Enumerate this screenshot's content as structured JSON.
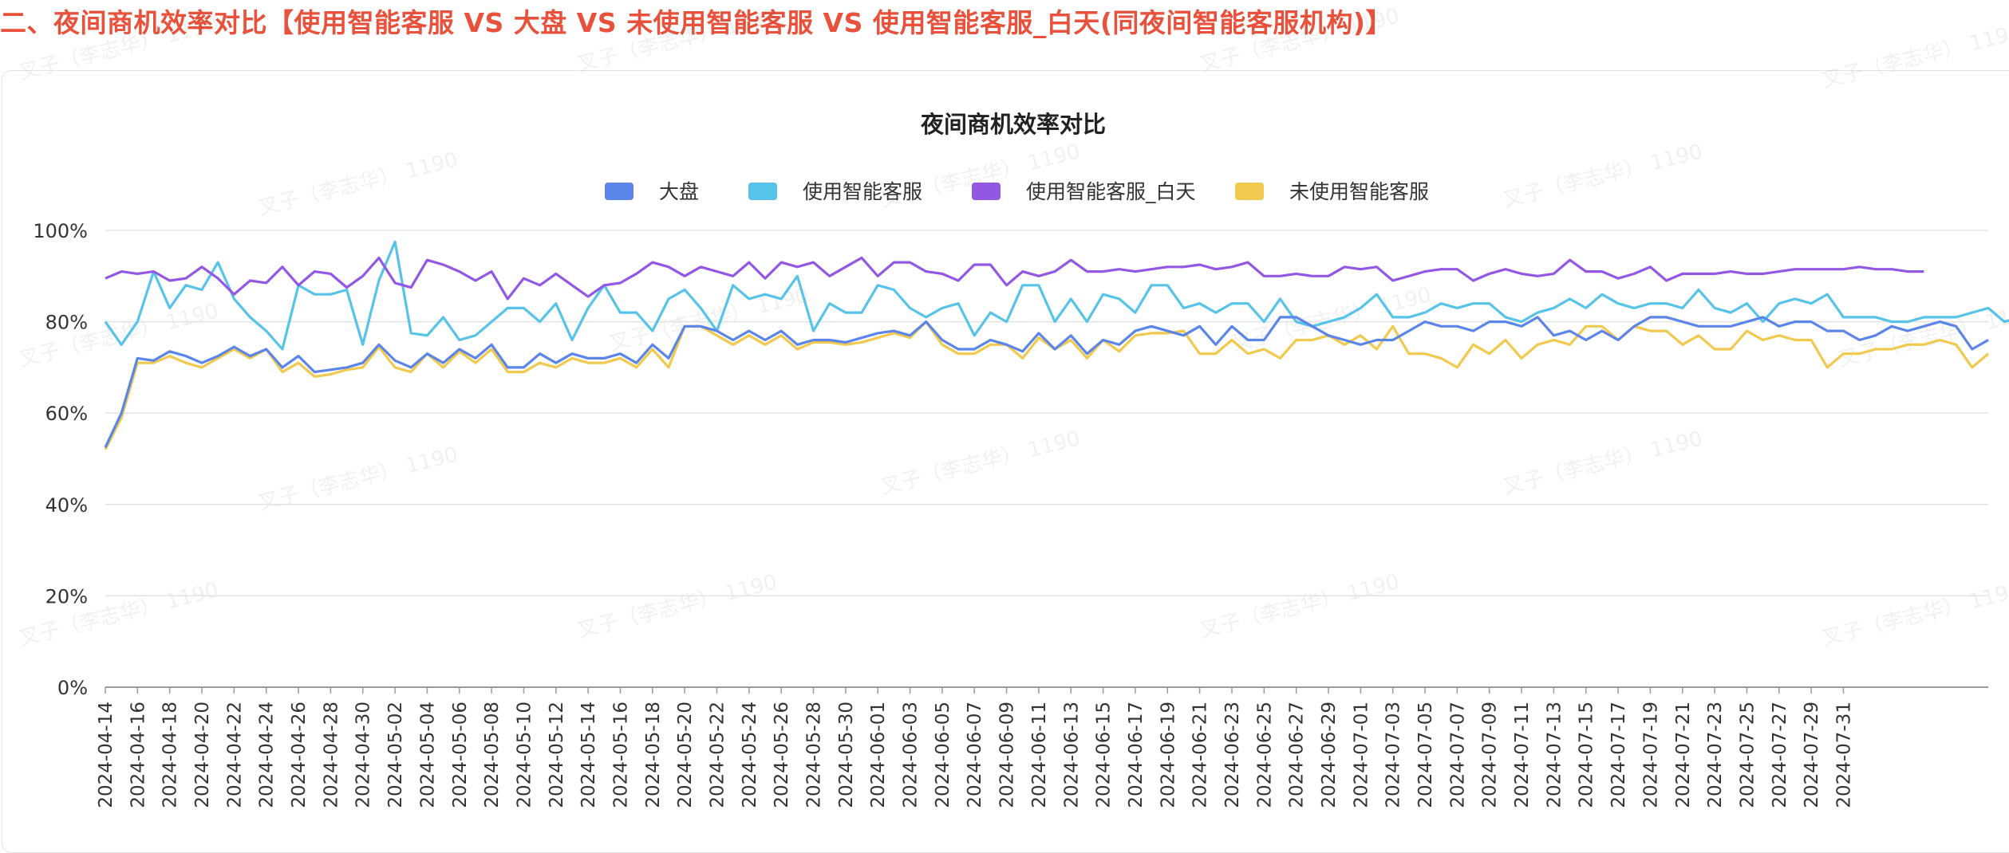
{
  "heading": "二、夜间商机效率对比【使用智能客服 VS 大盘 VS 未使用智能客服 VS 使用智能客服_白天(同夜间智能客服机构)】",
  "watermark": "叉子（李志华） 1190",
  "chart_data": {
    "type": "line",
    "title": "夜间商机效率对比",
    "start_date": "2024-04-14",
    "x_tick_labels": [
      "2024-04-14",
      "2024-04-16",
      "2024-04-18",
      "2024-04-20",
      "2024-04-22",
      "2024-04-24",
      "2024-04-26",
      "2024-04-28",
      "2024-04-30",
      "2024-05-02",
      "2024-05-04",
      "2024-05-06",
      "2024-05-08",
      "2024-05-10",
      "2024-05-12",
      "2024-05-14",
      "2024-05-16",
      "2024-05-18",
      "2024-05-20",
      "2024-05-22",
      "2024-05-24",
      "2024-05-26",
      "2024-05-28",
      "2024-05-30",
      "2024-06-01",
      "2024-06-03",
      "2024-06-05",
      "2024-06-07",
      "2024-06-09",
      "2024-06-11",
      "2024-06-13",
      "2024-06-15",
      "2024-06-17",
      "2024-06-19",
      "2024-06-21",
      "2024-06-23",
      "2024-06-25",
      "2024-06-27",
      "2024-06-29",
      "2024-07-01",
      "2024-07-03",
      "2024-07-05",
      "2024-07-07",
      "2024-07-09",
      "2024-07-11",
      "2024-07-13",
      "2024-07-15",
      "2024-07-17",
      "2024-07-19",
      "2024-07-21",
      "2024-07-23",
      "2024-07-25",
      "2024-07-27",
      "2024-07-29",
      "2024-07-31"
    ],
    "y_ticks": [
      "0%",
      "20%",
      "40%",
      "60%",
      "80%",
      "100%"
    ],
    "ylim": [
      0,
      100
    ],
    "grid": true,
    "legend_position": "top-center",
    "series": [
      {
        "name": "大盘",
        "color": "#5b85e8",
        "values": [
          52.5,
          60,
          72,
          71.5,
          73.5,
          72.5,
          71,
          72.5,
          74.5,
          72.5,
          74,
          70,
          72.5,
          69,
          69.5,
          70,
          71,
          75,
          71.5,
          70,
          73,
          71,
          74,
          72,
          75,
          70,
          70,
          73,
          71,
          73,
          72,
          72,
          73,
          71,
          75,
          72,
          79,
          79,
          78,
          76,
          78,
          76,
          78,
          75,
          76,
          76,
          75.5,
          76.5,
          77.5,
          78,
          77,
          80,
          76,
          74,
          74,
          76,
          75,
          73.5,
          77.5,
          74,
          77,
          73,
          76,
          75,
          78,
          79,
          78,
          77,
          79,
          75,
          79,
          76,
          76,
          81,
          81,
          79,
          77,
          76,
          75,
          76,
          76,
          78,
          80,
          79,
          79,
          78,
          80,
          80,
          79,
          81,
          77,
          78,
          76,
          78,
          76,
          79,
          81,
          81,
          80,
          79,
          79,
          79,
          80,
          81,
          79,
          80,
          80,
          78,
          78,
          76,
          77,
          79,
          78,
          79,
          80,
          79,
          74,
          76
        ]
      },
      {
        "name": "使用智能客服",
        "color": "#57c3e8",
        "values": [
          80,
          75,
          80,
          91,
          83,
          88,
          87,
          93,
          85,
          81,
          78,
          74,
          88,
          86,
          86,
          87,
          75,
          89,
          97.5,
          77.5,
          77,
          81,
          76,
          77,
          80,
          83,
          83,
          80,
          84,
          76,
          83,
          88,
          82,
          82,
          78,
          85,
          87,
          83,
          78,
          88,
          85,
          86,
          85,
          90,
          78,
          84,
          82,
          82,
          88,
          87,
          83,
          81,
          83,
          84,
          77,
          82,
          80,
          88,
          88,
          80,
          85,
          80,
          86,
          85,
          82,
          88,
          88,
          83,
          84,
          82,
          84,
          84,
          80,
          85,
          80,
          79,
          80,
          81,
          83,
          86,
          81,
          81,
          82,
          84,
          83,
          84,
          84,
          81,
          80,
          82,
          83,
          85,
          83,
          86,
          84,
          83,
          84,
          84,
          83,
          87,
          83,
          82,
          84,
          80,
          84,
          85,
          84,
          86,
          81,
          81,
          81,
          80,
          80,
          81,
          81,
          81,
          82,
          83,
          80,
          81
        ]
      },
      {
        "name": "使用智能客服_白天",
        "color": "#9257e3",
        "values": [
          89.5,
          91,
          90.5,
          91,
          89,
          89.5,
          92,
          89.5,
          86,
          89,
          88.5,
          92,
          88,
          91,
          90.5,
          87.5,
          90,
          94,
          88.5,
          87.5,
          93.5,
          92.5,
          91,
          89,
          91,
          85,
          89.5,
          88,
          90.5,
          88,
          85.5,
          88,
          88.5,
          90.5,
          93,
          92,
          90,
          92,
          91,
          90,
          93,
          89.5,
          93,
          92,
          93,
          90,
          92,
          94,
          90,
          93,
          93,
          91,
          90.5,
          89,
          92.5,
          92.5,
          88,
          91,
          90,
          91,
          93.5,
          91,
          91,
          91.5,
          91,
          91.5,
          92,
          92,
          92.5,
          91.5,
          92,
          93,
          90,
          90,
          90.5,
          90,
          90,
          92,
          91.5,
          92,
          89,
          90,
          91,
          91.5,
          91.5,
          89,
          90.5,
          91.5,
          90.5,
          90,
          90.5,
          93.5,
          91,
          91,
          89.5,
          90.5,
          92,
          89,
          90.5,
          90.5,
          90.5,
          91,
          90.5,
          90.5,
          91,
          91.5,
          91.5,
          91.5,
          91.5,
          92,
          91.5,
          91.5,
          91,
          91
        ]
      },
      {
        "name": "未使用智能客服",
        "color": "#f0c94e",
        "values": [
          52,
          59,
          71,
          71,
          72.5,
          71,
          70,
          72,
          74,
          72,
          74,
          69,
          71,
          68,
          68.5,
          69.5,
          70,
          74.5,
          70,
          69,
          73,
          70,
          73.5,
          71,
          74,
          69,
          69,
          71,
          70,
          72,
          71,
          71,
          72,
          70,
          74,
          70,
          79,
          79,
          77,
          75,
          77,
          75,
          77,
          74,
          75.5,
          75.5,
          75,
          75.5,
          76.5,
          77.5,
          76.5,
          80,
          75,
          73,
          73,
          75,
          75,
          72,
          76.5,
          74,
          76,
          72,
          76,
          73.5,
          77,
          77.5,
          77.5,
          78,
          73,
          73,
          76,
          73,
          74,
          72,
          76,
          76,
          77,
          75,
          77,
          74,
          79,
          73,
          73,
          72,
          70,
          75,
          73,
          76,
          72,
          75,
          76,
          75,
          79,
          79,
          76,
          79,
          78,
          78,
          75,
          77,
          74,
          74,
          78,
          76,
          77,
          76,
          76,
          70,
          73,
          73,
          74,
          74,
          75,
          75,
          76,
          75,
          70,
          73
        ]
      }
    ]
  }
}
